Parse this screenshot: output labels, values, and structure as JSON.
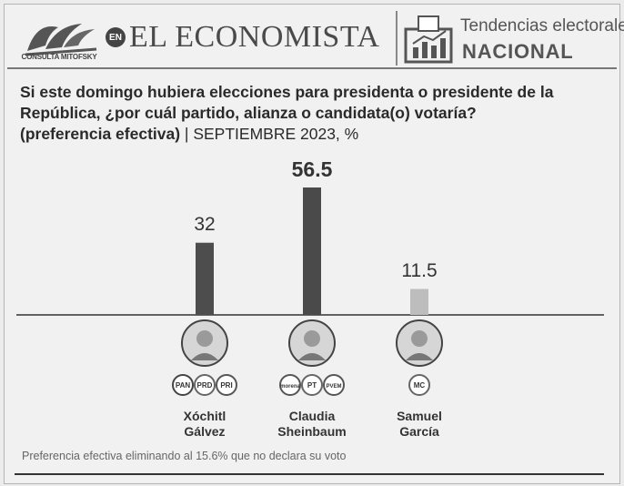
{
  "header": {
    "logo_caption": "CONSULTA MITOFSKY",
    "en_badge": "EN",
    "brand": "EL ECONOMISTA",
    "section_title": "Tendencias electorales",
    "section_subtitle": "NACIONAL",
    "icons": [
      "mitofsky-logo-icon",
      "ballot-box-chart-icon"
    ]
  },
  "question": {
    "text": "Si este domingo hubiera elecciones para presidenta o presidente de la República, ¿por cuál partido, alianza o candidata(o) votaría?",
    "qualifier": "(preferencia efectiva)",
    "meta": " | SEPTIEMBRE 2023, %"
  },
  "chart_data": {
    "type": "bar",
    "title": "Si este domingo hubiera elecciones para presidenta o presidente de la República, ¿por cuál partido, alianza o candidata(o) votaría? (preferencia efectiva) | SEPTIEMBRE 2023, %",
    "categories": [
      "Xóchitl Gálvez",
      "Claudia Sheinbaum",
      "Samuel García"
    ],
    "values": [
      32,
      56.5,
      11.5
    ],
    "value_labels": [
      "32",
      "56.5",
      "11.5"
    ],
    "colors": [
      "#4d4d4d",
      "#4a4a4a",
      "#bdbdbd"
    ],
    "parties": [
      [
        "PAN",
        "PRD",
        "PRI"
      ],
      [
        "morena",
        "PT",
        "PVEM"
      ],
      [
        "MC"
      ]
    ],
    "name_lines": [
      [
        "Xóchitl",
        "Gálvez"
      ],
      [
        "Claudia",
        "Sheinbaum"
      ],
      [
        "Samuel",
        "García"
      ]
    ],
    "ylim": [
      0,
      60
    ],
    "xlabel": "",
    "ylabel": "%"
  },
  "footnote": "Preferencia efectiva eliminando al 15.6% que no declara su voto"
}
